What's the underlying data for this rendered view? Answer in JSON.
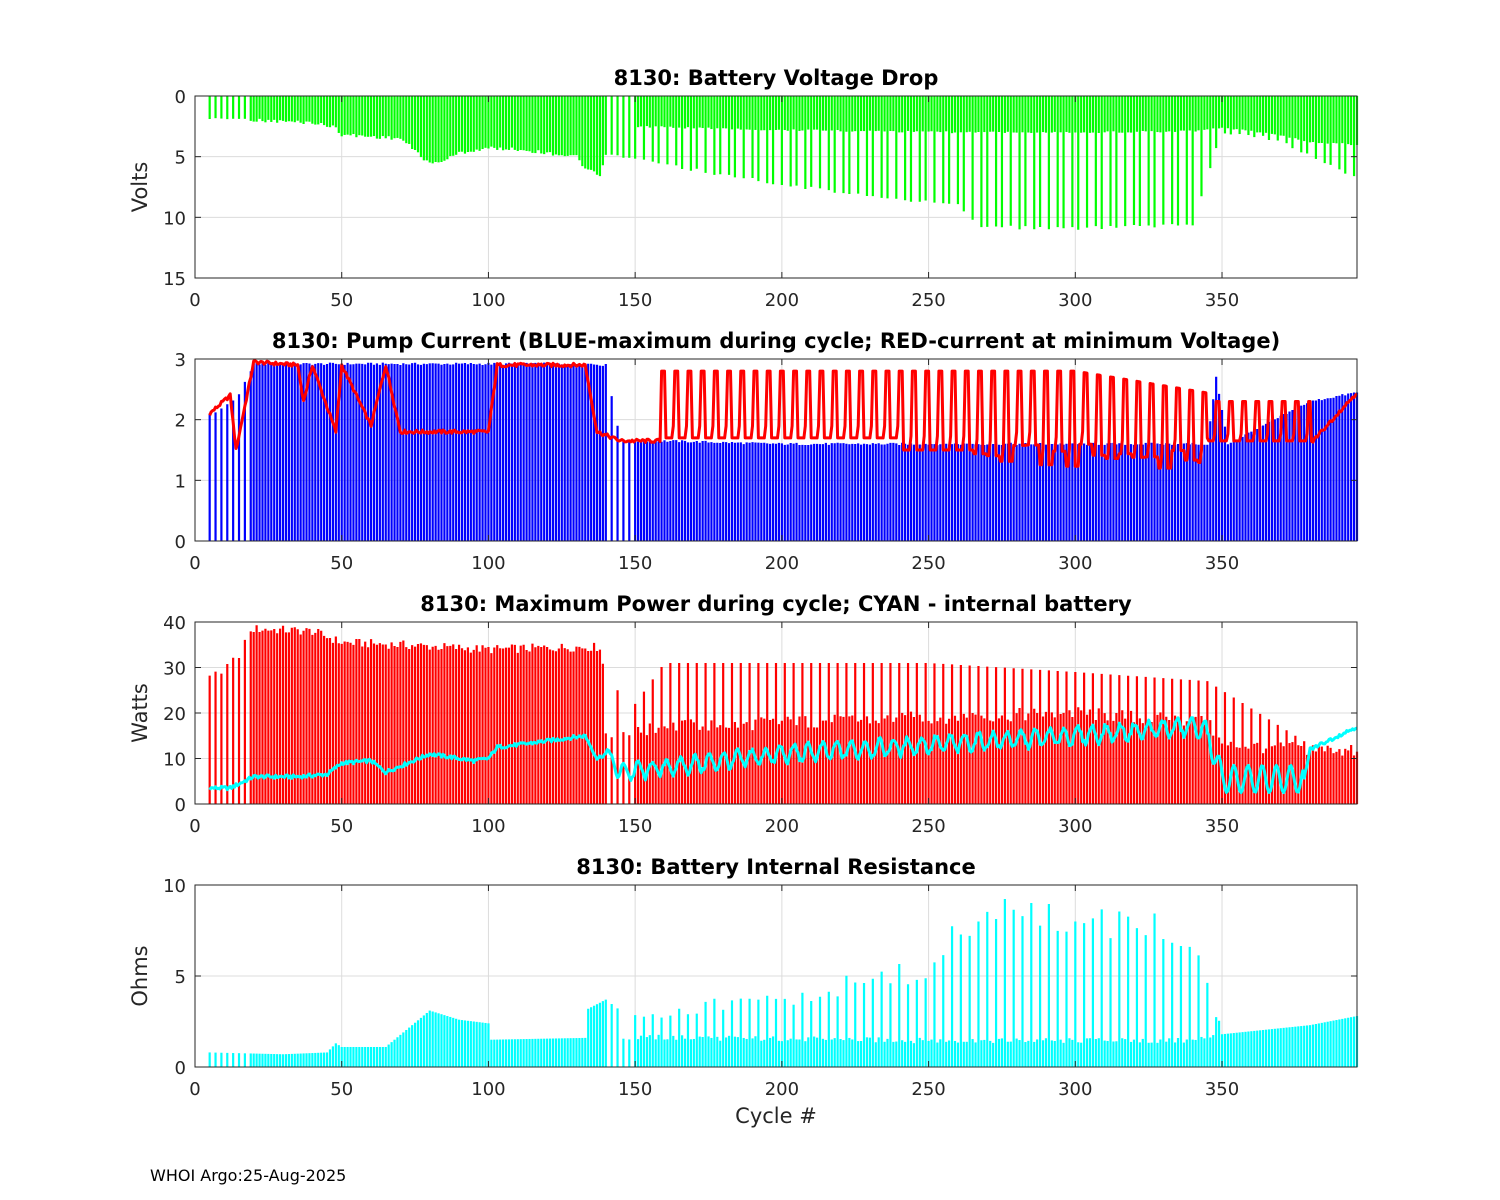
{
  "footer": "WHOI Argo:25-Aug-2025",
  "chart_data": [
    {
      "type": "bar",
      "title": "8130: Battery Voltage Drop",
      "xlabel": "",
      "ylabel": "Volts",
      "xlim": [
        0,
        396
      ],
      "ylim": [
        0,
        15
      ],
      "y_reversed": true,
      "xticks": [
        "0",
        "50",
        "100",
        "150",
        "200",
        "250",
        "300",
        "350"
      ],
      "yticks": [
        "0",
        "5",
        "10",
        "15"
      ],
      "grid": true,
      "series": [
        {
          "name": "voltage drop",
          "color": "#00ff00",
          "description": "Cycle-wise voltage drop; about 2 V near cycle 20-40, 3 V near 50-70, peak near 5.5 V at cycle 80, 4-5 V at 90-130, 6.5 V at 138, rising spikes to about 11 V at cycles 270-340, then 3-5 V after cycle 350 and 6.5 V at 395.",
          "knots_x": [
            5,
            20,
            40,
            48,
            50,
            70,
            75,
            80,
            85,
            90,
            100,
            110,
            130,
            133,
            138,
            140,
            150,
            180,
            200,
            230,
            260,
            268,
            300,
            340,
            345,
            350,
            370,
            380,
            396
          ],
          "knots_peak": [
            1.8,
            2.0,
            2.2,
            2.6,
            3.2,
            3.5,
            4.5,
            5.6,
            5.3,
            4.7,
            4.3,
            4.4,
            5.0,
            6.0,
            6.6,
            4.9,
            5.2,
            6.5,
            7.3,
            8.2,
            9.0,
            10.8,
            10.9,
            10.6,
            6.5,
            3.0,
            3.6,
            5.0,
            6.8
          ],
          "knots_base": [
            1.8,
            2.0,
            2.2,
            2.6,
            3.2,
            3.5,
            4.5,
            5.6,
            5.3,
            4.7,
            4.3,
            4.4,
            5.0,
            6.0,
            6.6,
            2.4,
            2.5,
            2.7,
            2.8,
            2.9,
            3.0,
            3.0,
            3.0,
            2.9,
            2.8,
            2.6,
            3.2,
            3.8,
            4.0
          ],
          "peak_spacing_after_150": 2.6
        }
      ]
    },
    {
      "type": "bar",
      "title": "8130: Pump Current (BLUE-maximum during cycle; RED-current at minimum Voltage)",
      "xlabel": "",
      "ylabel": "",
      "xlim": [
        0,
        396
      ],
      "ylim": [
        0,
        3
      ],
      "xticks": [
        "0",
        "50",
        "100",
        "150",
        "200",
        "250",
        "300",
        "350"
      ],
      "yticks": [
        "0",
        "1",
        "2",
        "3"
      ],
      "grid": true,
      "series": [
        {
          "name": "BLUE-maximum during cycle",
          "color": "#0000ff",
          "knots_x": [
            5,
            10,
            15,
            20,
            135,
            140,
            145,
            160,
            200,
            300,
            345,
            348,
            352,
            380,
            396
          ],
          "knots_y": [
            2.1,
            2.2,
            2.4,
            2.92,
            2.92,
            2.9,
            1.65,
            1.65,
            1.6,
            1.6,
            1.6,
            2.7,
            1.6,
            2.3,
            2.45
          ]
        },
        {
          "name": "RED-current at minimum Voltage",
          "color": "#ff0000",
          "knots_x": [
            5,
            12,
            14,
            20,
            35,
            37,
            40,
            48,
            50,
            60,
            65,
            70,
            100,
            103,
            133,
            137,
            145,
            159,
            350,
            380,
            396
          ],
          "knots_low": [
            2.1,
            2.4,
            1.5,
            2.95,
            2.9,
            2.3,
            2.9,
            1.8,
            2.9,
            1.9,
            2.9,
            1.8,
            1.8,
            2.9,
            2.9,
            1.8,
            1.65,
            1.65,
            1.6,
            1.6,
            2.45
          ],
          "oscillation_after_159": {
            "high": 2.8,
            "low_start": 1.7,
            "low_at_270_340": 1.2,
            "period": 4.5
          }
        }
      ]
    },
    {
      "type": "bar",
      "title": "8130: Maximum Power during cycle; CYAN - internal battery",
      "xlabel": "",
      "ylabel": "Watts",
      "xlim": [
        0,
        396
      ],
      "ylim": [
        0,
        40
      ],
      "xticks": [
        "0",
        "50",
        "100",
        "150",
        "200",
        "250",
        "300",
        "350"
      ],
      "yticks": [
        "0",
        "10",
        "20",
        "30",
        "40"
      ],
      "grid": true,
      "series": [
        {
          "name": "maximum power",
          "color": "#ff0000",
          "knots_x": [
            5,
            10,
            15,
            20,
            40,
            50,
            70,
            100,
            130,
            138,
            140,
            150,
            160,
            250,
            300,
            345,
            350,
            380,
            396
          ],
          "knots_y": [
            28,
            29,
            33,
            38.5,
            38,
            35.5,
            35,
            34,
            34.5,
            34.5,
            27,
            22,
            31,
            31,
            29,
            27,
            25,
            13,
            11.5
          ],
          "knots_base": [
            28,
            29,
            33,
            38.5,
            38,
            35.5,
            35,
            34,
            34.5,
            34.5,
            16,
            15.5,
            17,
            19,
            20,
            18,
            13,
            12,
            11.5
          ]
        },
        {
          "name": "CYAN - internal battery",
          "color": "#00ffff",
          "knots_x": [
            5,
            12,
            20,
            35,
            45,
            50,
            60,
            65,
            80,
            95,
            100,
            103,
            110,
            133,
            137,
            140,
            145,
            160,
            200,
            250,
            300,
            340,
            345,
            350,
            378,
            380,
            396
          ],
          "knots_y": [
            3.5,
            3.5,
            6,
            6,
            6.5,
            9,
            9.5,
            7,
            11,
            9.5,
            10,
            12.5,
            13,
            15,
            10,
            11,
            7,
            8,
            11,
            13,
            15,
            17,
            16,
            5.5,
            5.5,
            12,
            17
          ]
        }
      ]
    },
    {
      "type": "bar",
      "title": "8130: Battery Internal Resistance",
      "xlabel": "Cycle #",
      "ylabel": "Ohms",
      "xlim": [
        0,
        396
      ],
      "ylim": [
        0,
        10
      ],
      "xticks": [
        "0",
        "50",
        "100",
        "150",
        "200",
        "250",
        "300",
        "350"
      ],
      "yticks": [
        "0",
        "5",
        "10"
      ],
      "grid": true,
      "series": [
        {
          "name": "internal resistance",
          "color": "#00ffff",
          "knots_x": [
            5,
            30,
            45,
            48,
            50,
            65,
            80,
            90,
            100,
            101,
            133,
            134,
            140,
            145,
            200,
            250,
            268,
            275,
            300,
            340,
            345,
            350,
            380,
            396
          ],
          "knots_peak": [
            0.8,
            0.7,
            0.8,
            1.3,
            1.1,
            1.1,
            3.1,
            2.6,
            2.4,
            1.5,
            1.6,
            3.2,
            3.7,
            3.1,
            4.0,
            5.8,
            9.4,
            9.3,
            8.5,
            8.0,
            5.5,
            1.8,
            2.3,
            2.8
          ],
          "knots_base": [
            0.8,
            0.7,
            0.8,
            1.3,
            1.1,
            1.1,
            3.1,
            2.6,
            2.4,
            1.5,
            1.6,
            3.2,
            3.7,
            1.5,
            1.4,
            1.3,
            1.3,
            1.3,
            1.3,
            1.3,
            1.5,
            1.8,
            2.3,
            2.8
          ]
        }
      ]
    }
  ]
}
